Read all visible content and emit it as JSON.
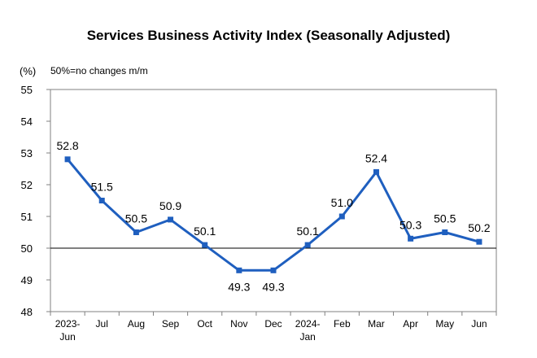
{
  "chart_data": {
    "type": "line",
    "title": "Services Business Activity Index (Seasonally Adjusted)",
    "unit_label": "(%)",
    "note": "50%=no changes m/m",
    "categories": [
      [
        "2023-",
        "Jun"
      ],
      [
        "Jul"
      ],
      [
        "Aug"
      ],
      [
        "Sep"
      ],
      [
        "Oct"
      ],
      [
        "Nov"
      ],
      [
        "Dec"
      ],
      [
        "2024-",
        "Jan"
      ],
      [
        "Feb"
      ],
      [
        "Mar"
      ],
      [
        "Apr"
      ],
      [
        "May"
      ],
      [
        "Jun"
      ]
    ],
    "series": [
      {
        "values": [
          52.8,
          51.5,
          50.5,
          50.9,
          50.1,
          49.3,
          49.3,
          50.1,
          51.0,
          52.4,
          50.3,
          50.5,
          50.2
        ],
        "labels": [
          "52.8",
          "51.5",
          "50.5",
          "50.9",
          "50.1",
          "49.3",
          "49.3",
          "50.1",
          "51.0",
          "52.4",
          "50.3",
          "50.5",
          "50.2"
        ],
        "label_position": [
          "above",
          "above",
          "above",
          "above",
          "above",
          "below",
          "below",
          "above",
          "above",
          "above",
          "above",
          "above",
          "above"
        ],
        "color": "#1f5fbf"
      }
    ],
    "ylim": [
      48,
      55
    ],
    "yticks": [
      48,
      49,
      50,
      51,
      52,
      53,
      54,
      55
    ],
    "reference_line": 50,
    "grid": false,
    "legend": "none"
  }
}
